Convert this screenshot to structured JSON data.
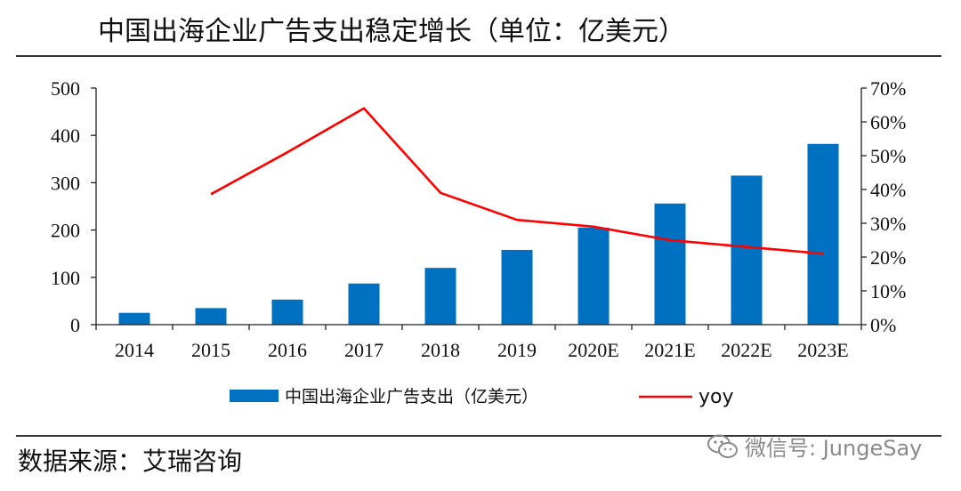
{
  "title": "中国出海企业广告支出稳定增长（单位：亿美元）",
  "source": "数据来源：艾瑞咨询",
  "watermark": "微信号: JungeSay",
  "colors": {
    "bar": "#0070c0",
    "line": "#ff0000",
    "axis": "#222222"
  },
  "chart_data": {
    "type": "bar+line",
    "categories": [
      "2014",
      "2015",
      "2016",
      "2017",
      "2018",
      "2019",
      "2020E",
      "2021E",
      "2022E",
      "2023E"
    ],
    "series": [
      {
        "name": "中国出海企业广告支出（亿美元）",
        "type": "bar",
        "axis": "left",
        "values": [
          25,
          35,
          53,
          87,
          120,
          158,
          205,
          256,
          315,
          382
        ]
      },
      {
        "name": "yoy",
        "type": "line",
        "axis": "right",
        "values": [
          null,
          0.386,
          0.51,
          0.64,
          0.39,
          0.31,
          0.29,
          0.25,
          0.23,
          0.21
        ]
      }
    ],
    "y_left": {
      "min": 0,
      "max": 500,
      "ticks": [
        0,
        100,
        200,
        300,
        400,
        500
      ],
      "tick_labels": [
        "0",
        "100",
        "200",
        "300",
        "400",
        "500"
      ]
    },
    "y_right": {
      "min": 0,
      "max": 0.7,
      "ticks": [
        0,
        0.1,
        0.2,
        0.3,
        0.4,
        0.5,
        0.6,
        0.7
      ],
      "tick_labels": [
        "0%",
        "10%",
        "20%",
        "30%",
        "40%",
        "50%",
        "60%",
        "70%"
      ]
    },
    "legend": {
      "position": "bottom",
      "entries": [
        "中国出海企业广告支出（亿美元）",
        "yoy"
      ]
    },
    "grid": false
  }
}
